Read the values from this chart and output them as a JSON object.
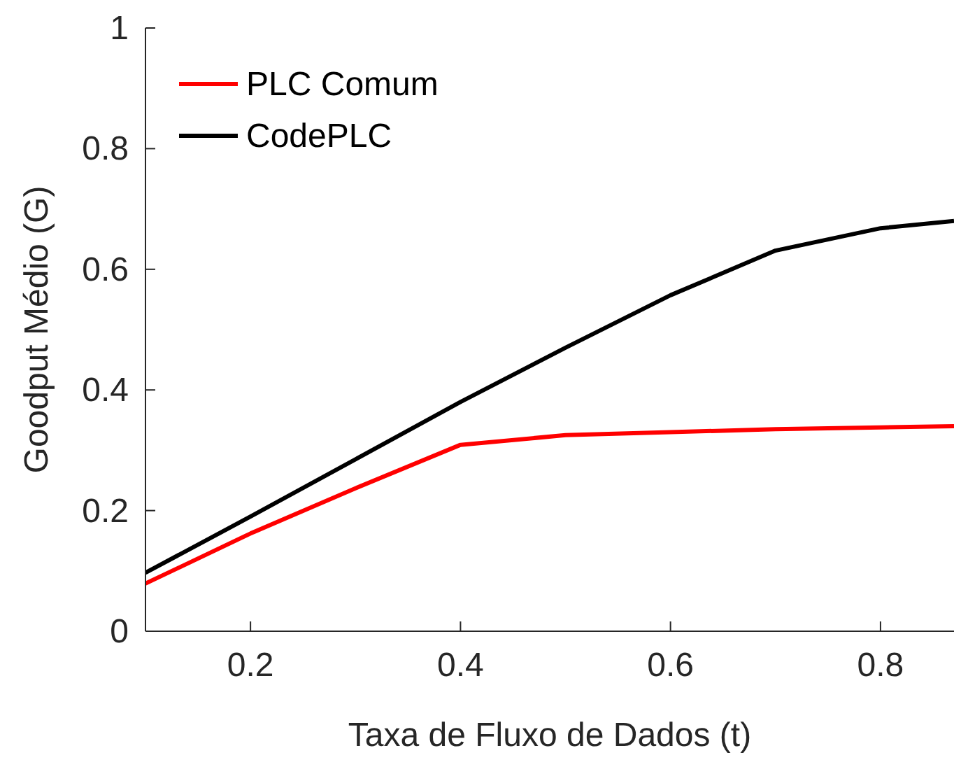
{
  "chart_data": {
    "type": "line",
    "xlabel": "Taxa de Fluxo de Dados (t)",
    "ylabel": "Goodput Médio (G)",
    "x": [
      0.1,
      0.2,
      0.3,
      0.4,
      0.5,
      0.6,
      0.7,
      0.8,
      0.87
    ],
    "series": [
      {
        "name": "PLC Comum",
        "color": "#ff0000",
        "values": [
          0.079,
          0.162,
          0.237,
          0.309,
          0.325,
          0.33,
          0.335,
          0.338,
          0.34
        ]
      },
      {
        "name": "CodePLC",
        "color": "#000000",
        "values": [
          0.097,
          0.19,
          0.285,
          0.38,
          0.47,
          0.557,
          0.631,
          0.668,
          0.68
        ]
      }
    ],
    "xlim": [
      0.1,
      0.87
    ],
    "xticks": [
      0.2,
      0.4,
      0.6,
      0.8
    ],
    "ylim": [
      0,
      1
    ],
    "yticks": [
      0,
      0.2,
      0.4,
      0.6,
      0.8,
      1
    ],
    "legend": "top left",
    "grid": false
  }
}
